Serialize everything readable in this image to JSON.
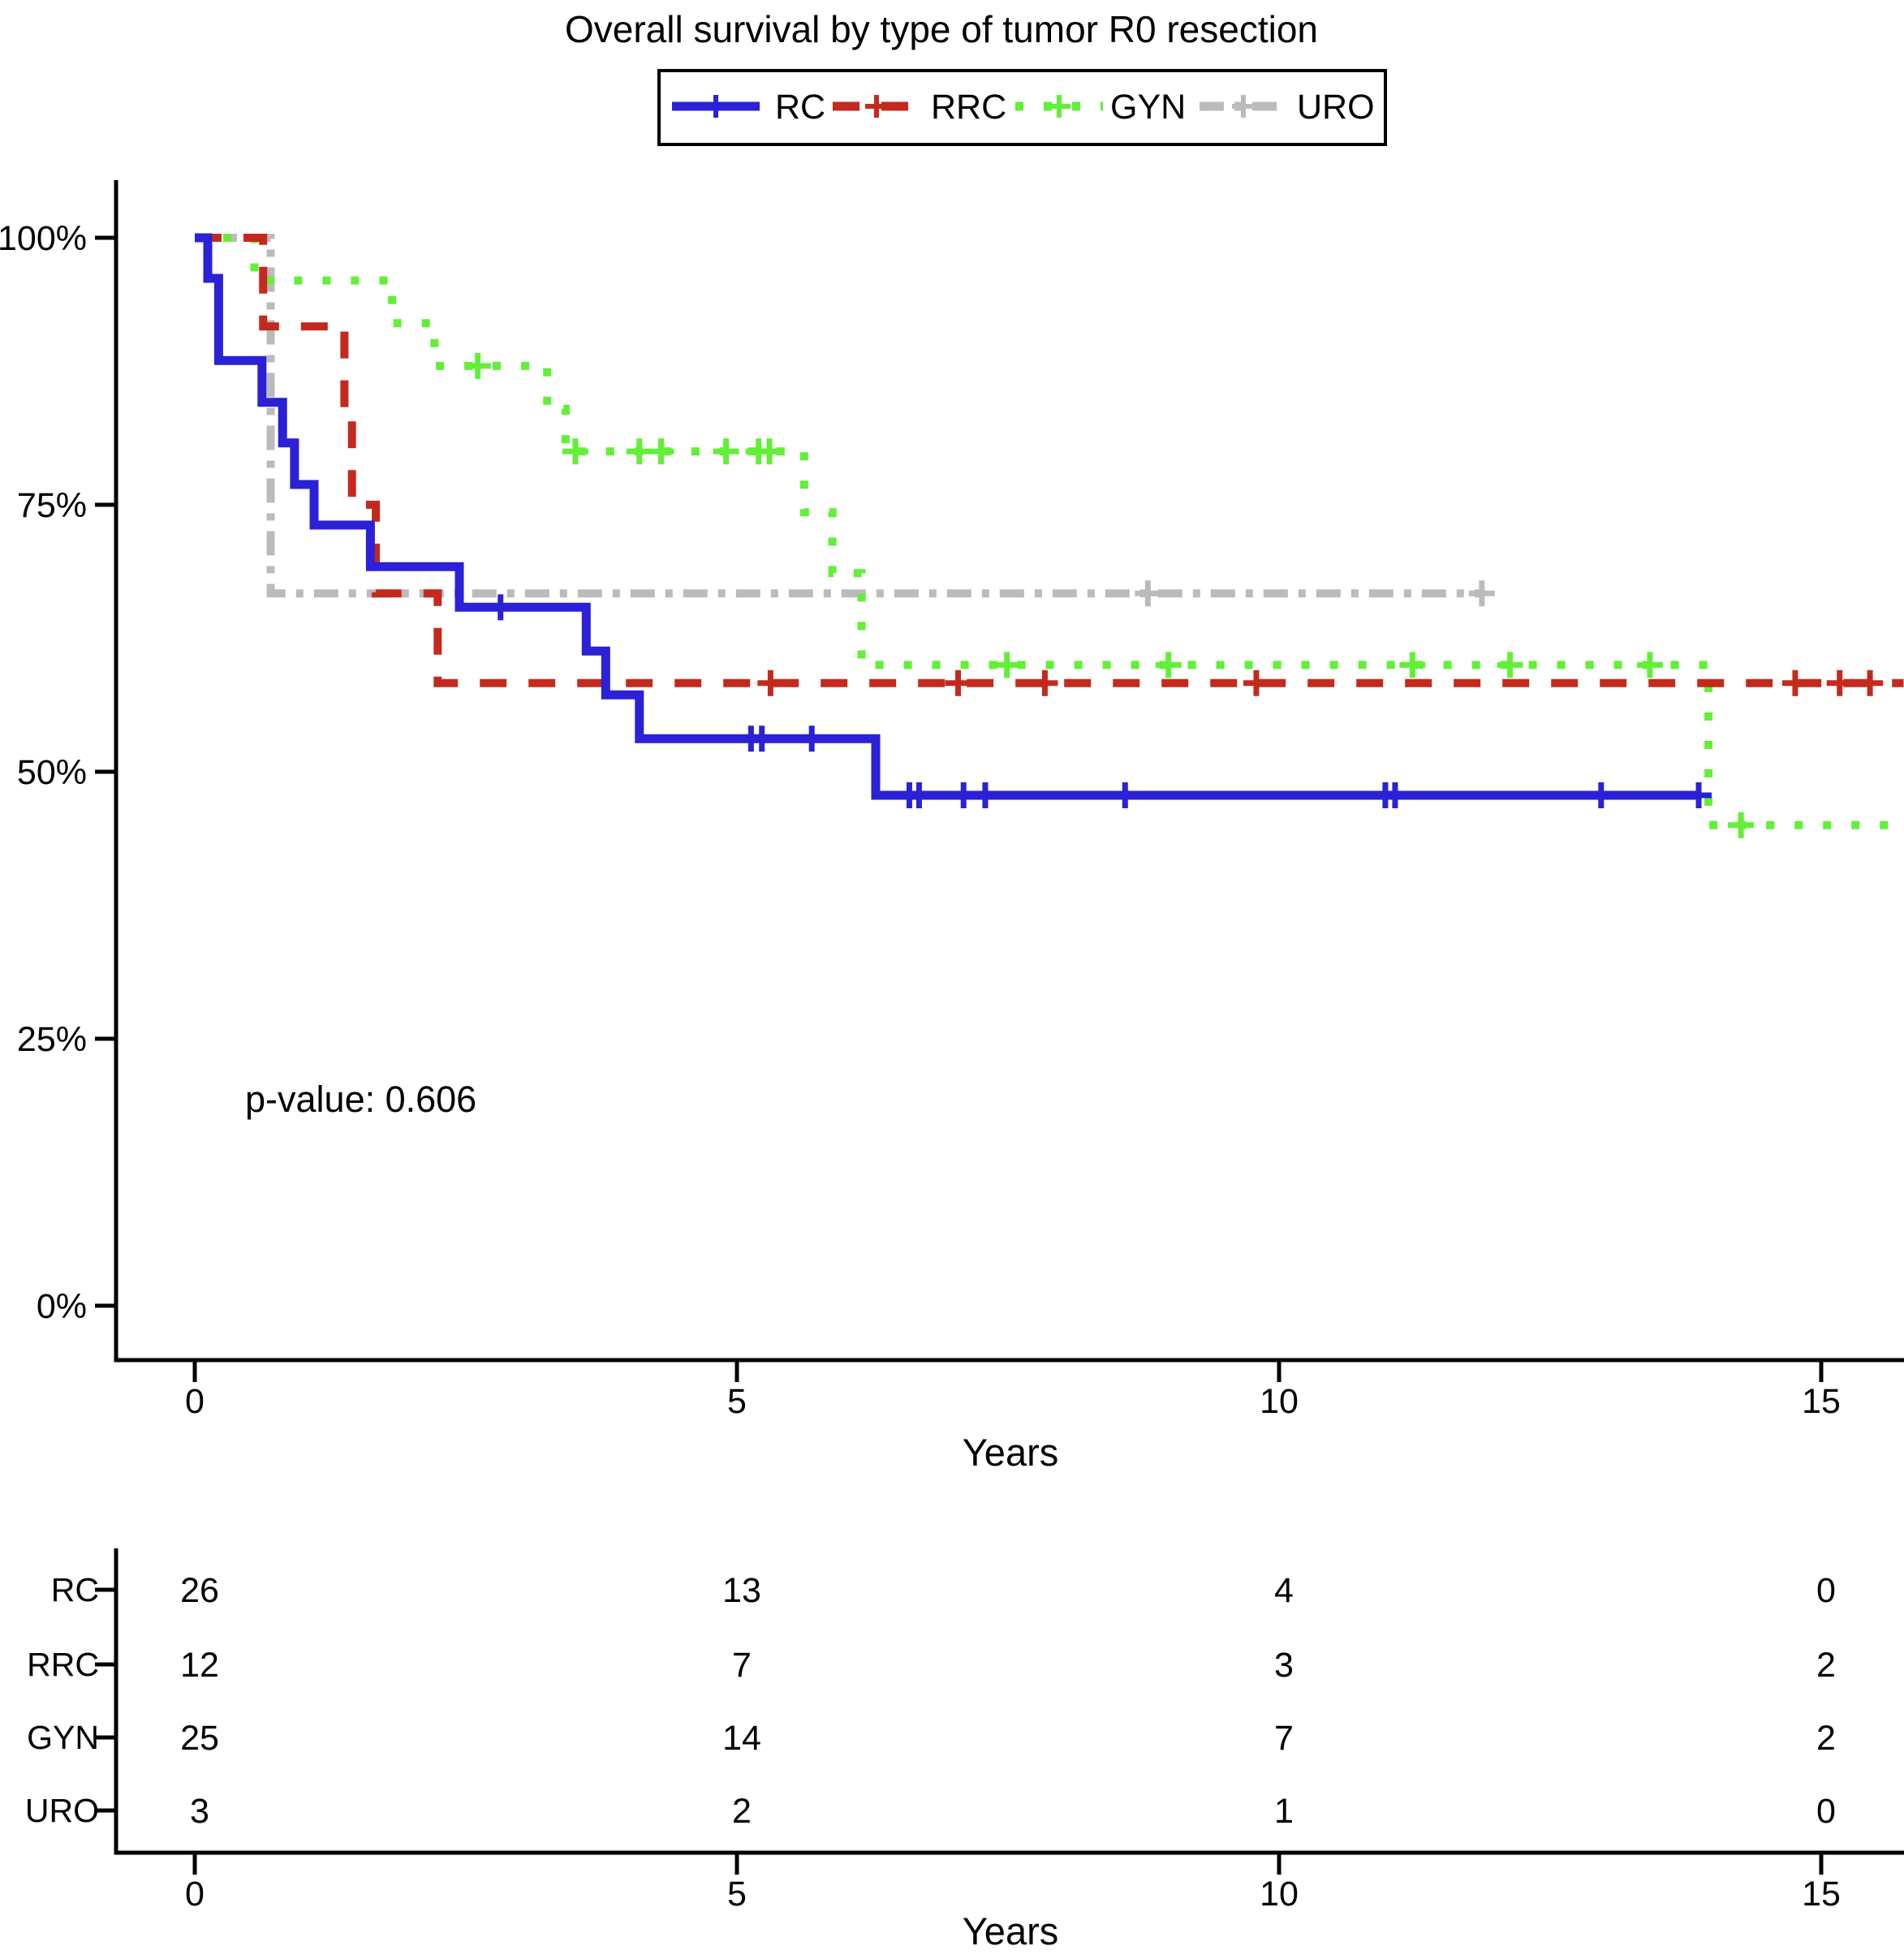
{
  "title": "Overall survival by type of tumor R0 resection",
  "chart_data": {
    "type": "line",
    "subtype": "kaplan-meier-step",
    "title": "Overall survival by type of tumor R0 resection",
    "xlabel": "Years",
    "ylabel": "",
    "xlim": [
      0,
      15.76
    ],
    "ylim": [
      0,
      100
    ],
    "grid": false,
    "legend_position": "top-center-boxed",
    "p_value": "p-value: 0.606",
    "xticks": [
      0,
      5,
      10,
      15
    ],
    "xtick_labels": [
      "0",
      "5",
      "10",
      "15"
    ],
    "yticks": [
      {
        "value": 100,
        "label": "100%"
      },
      {
        "value": 75,
        "label": "75%"
      },
      {
        "value": 50,
        "label": "50%"
      },
      {
        "value": 25,
        "label": "25%"
      },
      {
        "value": 0,
        "label": "0%"
      }
    ],
    "legend": [
      "RC",
      "RRC",
      "GYN",
      "URO"
    ],
    "series": [
      {
        "name": "RC",
        "color": "#2B21D6",
        "dash": "solid",
        "points": [
          [
            0,
            100
          ],
          [
            0.12,
            96.2
          ],
          [
            0.22,
            88.5
          ],
          [
            0.62,
            84.6
          ],
          [
            0.81,
            80.8
          ],
          [
            0.92,
            76.9
          ],
          [
            1.1,
            73.1
          ],
          [
            1.62,
            69.2
          ],
          [
            2.44,
            65.4
          ],
          [
            3.61,
            61.3
          ],
          [
            3.79,
            57.2
          ],
          [
            4.1,
            53.1
          ],
          [
            6.28,
            47.8
          ],
          [
            13.87,
            47.8
          ]
        ],
        "censors": [
          [
            2.82,
            65.4
          ],
          [
            5.13,
            53.1
          ],
          [
            5.23,
            53.1
          ],
          [
            5.69,
            53.1
          ],
          [
            6.59,
            47.8
          ],
          [
            6.68,
            47.8
          ],
          [
            7.09,
            47.8
          ],
          [
            7.29,
            47.8
          ],
          [
            8.58,
            47.8
          ],
          [
            10.98,
            47.8
          ],
          [
            11.07,
            47.8
          ],
          [
            12.97,
            47.8
          ],
          [
            13.87,
            47.8
          ]
        ]
      },
      {
        "name": "RRC",
        "color": "#C32A1D",
        "dash": "dashed",
        "points": [
          [
            0,
            100
          ],
          [
            0.63,
            91.7
          ],
          [
            1.38,
            83.3
          ],
          [
            1.45,
            75.0
          ],
          [
            1.67,
            66.7
          ],
          [
            2.24,
            58.3
          ],
          [
            15.76,
            58.3
          ]
        ],
        "censors": [
          [
            5.31,
            58.3
          ],
          [
            7.04,
            58.3
          ],
          [
            7.84,
            58.3
          ],
          [
            9.79,
            58.3
          ],
          [
            14.76,
            58.3
          ],
          [
            15.17,
            58.3
          ],
          [
            15.45,
            58.3
          ]
        ]
      },
      {
        "name": "GYN",
        "color": "#62EF37",
        "dash": "dotted",
        "points": [
          [
            0,
            100
          ],
          [
            0.55,
            96.0
          ],
          [
            1.82,
            92.0
          ],
          [
            2.21,
            88.0
          ],
          [
            3.25,
            84.0
          ],
          [
            3.42,
            80.0
          ],
          [
            5.62,
            74.3
          ],
          [
            5.88,
            68.6
          ],
          [
            6.15,
            60.0
          ],
          [
            13.96,
            45.0
          ],
          [
            15.76,
            45.0
          ]
        ],
        "censors": [
          [
            2.61,
            88.0
          ],
          [
            3.51,
            80.0
          ],
          [
            4.1,
            80.0
          ],
          [
            4.3,
            80.0
          ],
          [
            4.9,
            80.0
          ],
          [
            5.2,
            80.0
          ],
          [
            5.3,
            80.0
          ],
          [
            7.49,
            60.0
          ],
          [
            8.98,
            60.0
          ],
          [
            11.23,
            60.0
          ],
          [
            12.13,
            60.0
          ],
          [
            13.42,
            60.0
          ],
          [
            14.26,
            45.0
          ]
        ]
      },
      {
        "name": "URO",
        "color": "#BBBBBB",
        "dash": "dashdot",
        "points": [
          [
            0,
            100
          ],
          [
            0.7,
            66.7
          ],
          [
            11.87,
            66.7
          ]
        ],
        "censors": [
          [
            8.79,
            66.7
          ],
          [
            11.87,
            66.7
          ]
        ]
      }
    ]
  },
  "risk_table": {
    "xlabel": "Years",
    "columns": [
      "0",
      "5",
      "10",
      "15"
    ],
    "rows": [
      {
        "label": "RC",
        "color": "#2B21D6",
        "values": [
          "26",
          "13",
          "4",
          "0"
        ]
      },
      {
        "label": "RRC",
        "color": "#C32A1D",
        "values": [
          "12",
          "7",
          "3",
          "2"
        ]
      },
      {
        "label": "GYN",
        "color": "#62EF37",
        "values": [
          "25",
          "14",
          "7",
          "2"
        ]
      },
      {
        "label": "URO",
        "color": "#BBBBBB",
        "values": [
          "3",
          "2",
          "1",
          "0"
        ]
      }
    ]
  },
  "colors": {
    "axis": "#000000",
    "background": "#FFFFFF",
    "legend_border": "#000000"
  }
}
